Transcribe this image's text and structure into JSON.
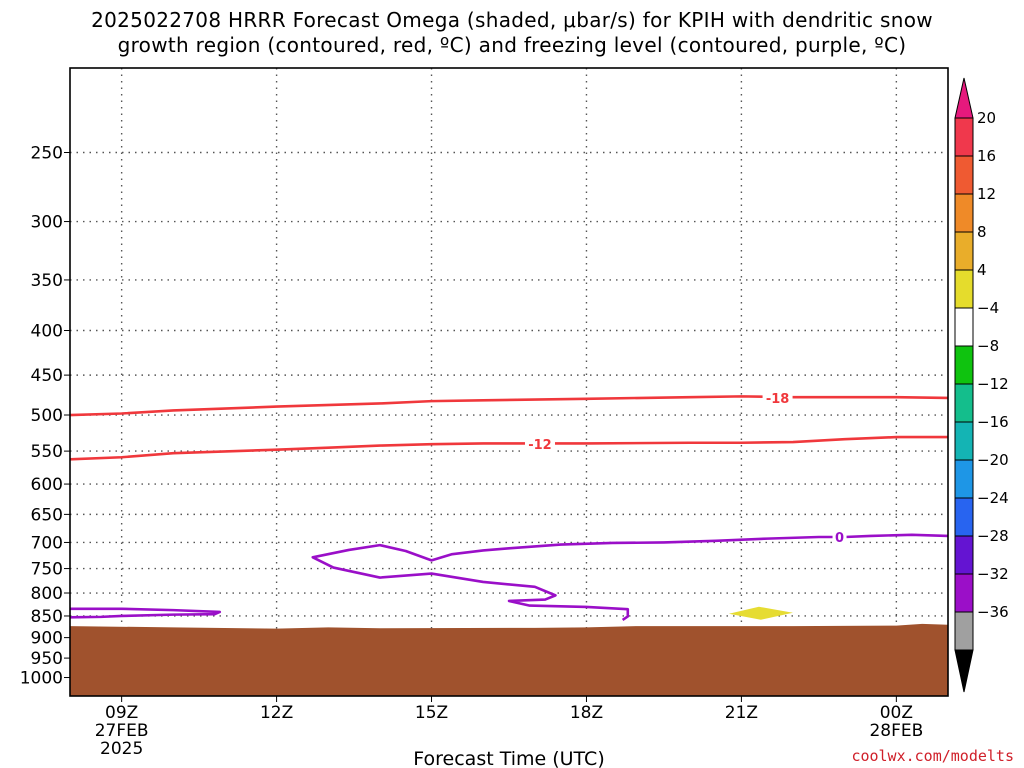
{
  "title_line1": "2025022708 HRRR Forecast Omega (shaded, μbar/s) for KPIH with dendritic snow",
  "title_line2": "growth region (contoured, red, ºC) and freezing level (contoured, purple, ºC)",
  "credit": "coolwx.com/modelts",
  "chart_data": {
    "type": "contour",
    "xlabel": "Forecast Time (UTC)",
    "ylabel": "",
    "x_ticks": [
      "09Z",
      "12Z",
      "15Z",
      "18Z",
      "21Z",
      "00Z"
    ],
    "x_ticks_sub": [
      [
        "27FEB",
        "2025"
      ],
      [],
      [],
      [],
      [],
      [
        "28FEB"
      ]
    ],
    "x_range_hours": [
      8,
      25
    ],
    "y_scale": "log-pressure",
    "y_ticks": [
      250,
      300,
      350,
      400,
      450,
      500,
      550,
      600,
      650,
      700,
      750,
      800,
      850,
      900,
      950,
      1000
    ],
    "y_range_hPa": [
      200,
      1050
    ],
    "grid": true,
    "terrain": {
      "color": "#a0522d",
      "points": [
        [
          8,
          873
        ],
        [
          10,
          876
        ],
        [
          12,
          879
        ],
        [
          13,
          876
        ],
        [
          14,
          878
        ],
        [
          17,
          877
        ],
        [
          18,
          876
        ],
        [
          19,
          873
        ],
        [
          22,
          873
        ],
        [
          24,
          872
        ],
        [
          24.5,
          868
        ],
        [
          25,
          870
        ]
      ]
    },
    "contours": [
      {
        "label": "-18",
        "color": "#f0383c",
        "label_at": [
          21.7,
          478
        ],
        "points": [
          [
            8,
            500
          ],
          [
            9,
            498
          ],
          [
            10,
            494
          ],
          [
            12,
            489
          ],
          [
            14,
            485
          ],
          [
            15,
            482
          ],
          [
            16,
            481
          ],
          [
            18,
            479
          ],
          [
            20,
            477
          ],
          [
            21,
            476
          ],
          [
            22,
            477
          ],
          [
            24,
            477
          ],
          [
            25,
            478
          ]
        ]
      },
      {
        "label": "-12",
        "color": "#f0383c",
        "label_at": [
          17.1,
          540
        ],
        "points": [
          [
            8,
            562
          ],
          [
            9,
            559
          ],
          [
            10,
            553
          ],
          [
            12,
            548
          ],
          [
            13,
            545
          ],
          [
            14,
            542
          ],
          [
            15,
            540
          ],
          [
            16,
            539
          ],
          [
            18,
            539
          ],
          [
            20,
            538
          ],
          [
            21,
            538
          ],
          [
            22,
            537
          ],
          [
            23,
            533
          ],
          [
            24,
            530
          ],
          [
            25,
            530
          ]
        ]
      },
      {
        "label": "0",
        "color": "#9a0fc8",
        "label_at": [
          22.9,
          690
        ],
        "points": [
          [
            25,
            688
          ],
          [
            24.3,
            686
          ],
          [
            23.5,
            688
          ],
          [
            23,
            690
          ],
          [
            22.5,
            690
          ],
          [
            21.5,
            693
          ],
          [
            20.5,
            697
          ],
          [
            19.5,
            700
          ],
          [
            18.5,
            701
          ],
          [
            17.5,
            704
          ],
          [
            16.5,
            711
          ],
          [
            16,
            715
          ],
          [
            15.4,
            722
          ],
          [
            15,
            734
          ],
          [
            14.5,
            716
          ],
          [
            14,
            705
          ],
          [
            13.4,
            714
          ],
          [
            12.7,
            728
          ],
          [
            13.1,
            748
          ],
          [
            14,
            768
          ],
          [
            15,
            760
          ],
          [
            16,
            777
          ],
          [
            17,
            787
          ],
          [
            17.4,
            805
          ],
          [
            17.2,
            814
          ],
          [
            16.5,
            817
          ],
          [
            16.9,
            827
          ],
          [
            18,
            830
          ],
          [
            18.8,
            835
          ],
          [
            18.8,
            851
          ],
          [
            18.7,
            859
          ]
        ]
      },
      {
        "label": "",
        "color": "#9a0fc8",
        "label_at": null,
        "points": [
          [
            8,
            834
          ],
          [
            9,
            834
          ],
          [
            10,
            837
          ],
          [
            10.9,
            841
          ],
          [
            10.8,
            846
          ],
          [
            10,
            847
          ],
          [
            9,
            850
          ],
          [
            8.6,
            852
          ],
          [
            8,
            853
          ]
        ]
      }
    ],
    "shaded": [
      {
        "range": [
          4,
          8
        ],
        "color": "#e6dc32",
        "center": [
          21.3,
          845
        ]
      }
    ],
    "colorbar": {
      "levels": [
        20,
        16,
        12,
        8,
        4,
        -4,
        -8,
        -12,
        -16,
        -20,
        -24,
        -28,
        -32,
        -36
      ],
      "colors": [
        "#f0384c",
        "#ef5a32",
        "#ef8a28",
        "#e9ad2a",
        "#e5dc2c",
        "#ffffff",
        "#0fc30f",
        "#14be8c",
        "#14b4b4",
        "#1e96e6",
        "#2864f0",
        "#6414d2",
        "#9b0fc8",
        "#a0a0a0"
      ],
      "over_color": "#e6197d",
      "under_color": "#000000"
    }
  }
}
